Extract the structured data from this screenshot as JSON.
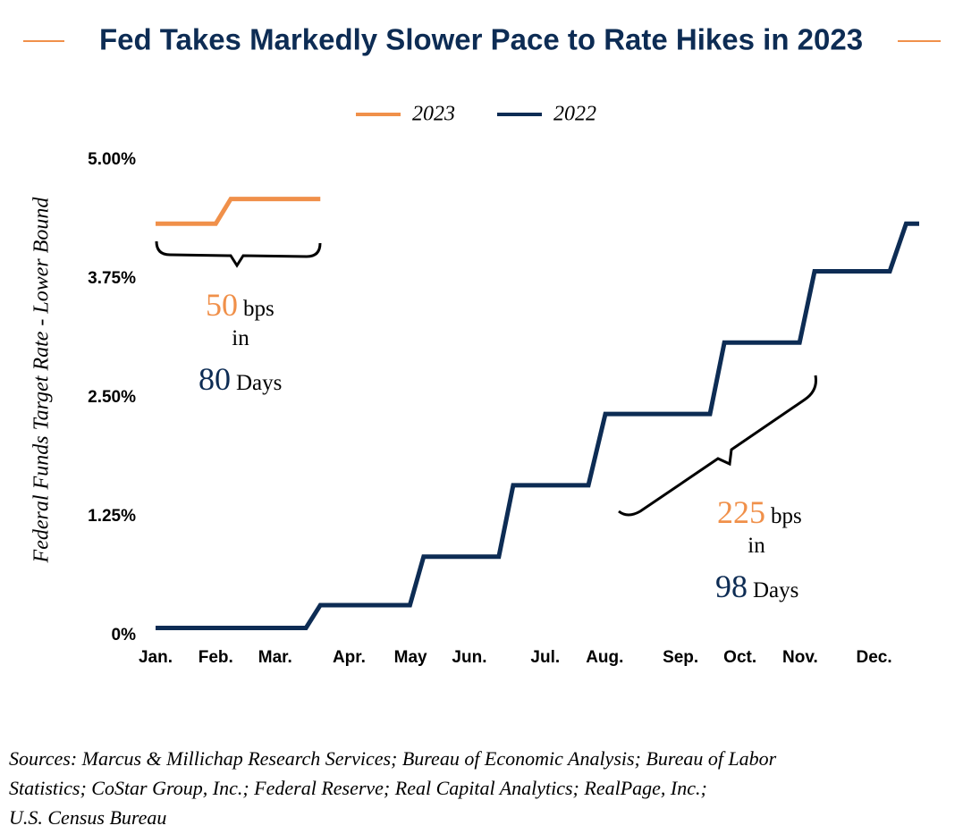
{
  "chart_data": {
    "type": "line",
    "title": "Fed Takes Markedly Slower Pace to Rate Hikes in 2023",
    "y_label": "Federal Funds Target Rate - Lower Bound",
    "xlim": [
      0,
      11.68
    ],
    "xticks": [
      {
        "value": 0,
        "label": "Jan."
      },
      {
        "value": 0.92,
        "label": "Feb."
      },
      {
        "value": 1.83,
        "label": "Mar."
      },
      {
        "value": 2.96,
        "label": "Apr."
      },
      {
        "value": 3.9,
        "label": "May"
      },
      {
        "value": 4.8,
        "label": "Jun."
      },
      {
        "value": 5.96,
        "label": "Jul."
      },
      {
        "value": 6.87,
        "label": "Aug."
      },
      {
        "value": 8.03,
        "label": "Sep."
      },
      {
        "value": 8.94,
        "label": "Oct."
      },
      {
        "value": 9.86,
        "label": "Nov."
      },
      {
        "value": 10.99,
        "label": "Dec."
      }
    ],
    "ylim": [
      0,
      5
    ],
    "yticks": [
      {
        "value": 0,
        "label": "0%"
      },
      {
        "value": 1.25,
        "label": "1.25%"
      },
      {
        "value": 2.5,
        "label": "2.50%"
      },
      {
        "value": 3.75,
        "label": "3.75%"
      },
      {
        "value": 5,
        "label": "5.00%"
      }
    ],
    "grid": false,
    "legend": "top",
    "series": [
      {
        "name": "2023",
        "color": "#f0904a",
        "x": [
          0,
          0.92,
          1.15,
          2.52
        ],
        "values": [
          4.33,
          4.33,
          4.59,
          4.59
        ]
      },
      {
        "name": "2022",
        "color": "#0d2c54",
        "x": [
          0,
          2.3,
          2.52,
          3.89,
          4.1,
          5.25,
          5.47,
          6.62,
          6.88,
          8.48,
          8.7,
          9.85,
          10.08,
          11.23,
          11.48,
          11.68
        ],
        "values": [
          0.08,
          0.08,
          0.32,
          0.32,
          0.83,
          0.83,
          1.58,
          1.58,
          2.33,
          2.33,
          3.08,
          3.08,
          3.83,
          3.83,
          4.33,
          4.33
        ]
      }
    ],
    "annotations": [
      {
        "change": "50",
        "unit": "bps",
        "in": "in",
        "days": "80",
        "days_label": "Days"
      },
      {
        "change": "225",
        "unit": "bps",
        "in": "in",
        "days": "98",
        "days_label": "Days"
      }
    ],
    "source": [
      "Sources: Marcus & Millichap Research Services; Bureau of Economic Analysis; Bureau of Labor",
      "Statistics; CoStar Group, Inc.; Federal Reserve; Real Capital Analytics; RealPage, Inc.;",
      "U.S. Census Bureau"
    ]
  }
}
